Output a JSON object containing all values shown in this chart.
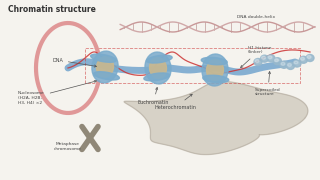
{
  "title": "Chromatin structure",
  "bg_color": "#f5f3ee",
  "labels": {
    "dna_double_helix": "DNA double-helix",
    "h1_histone": "H1 histone\n(linker)",
    "dna": "DNA",
    "nucleosome": "Nucleosome\n(H2A, H2B,\nH3, H4) ×2",
    "euchromatin": "Euchromatin",
    "heterochromatin": "Heterochromatin",
    "supercoiled": "Supercoiled\nstructure",
    "metaphase": "Metaphase\nchromosome"
  },
  "colors": {
    "bg": "#f5f3ee",
    "pink_loop": "#e09898",
    "blue_fiber": "#6aa0cc",
    "nucleosome_outer": "#7aabcc",
    "nucleosome_inner": "#c8b890",
    "red_line": "#cc3333",
    "helix_strand1": "#c89898",
    "helix_strand2": "#d0a8a8",
    "helix_cross": "#b08080",
    "small_beads": "#98b8cc",
    "heterochromatin_fill": "#c0b8a8",
    "chromosome_color": "#908878",
    "text_dark": "#333333",
    "text_label": "#444444",
    "arrow_color": "#555555"
  }
}
